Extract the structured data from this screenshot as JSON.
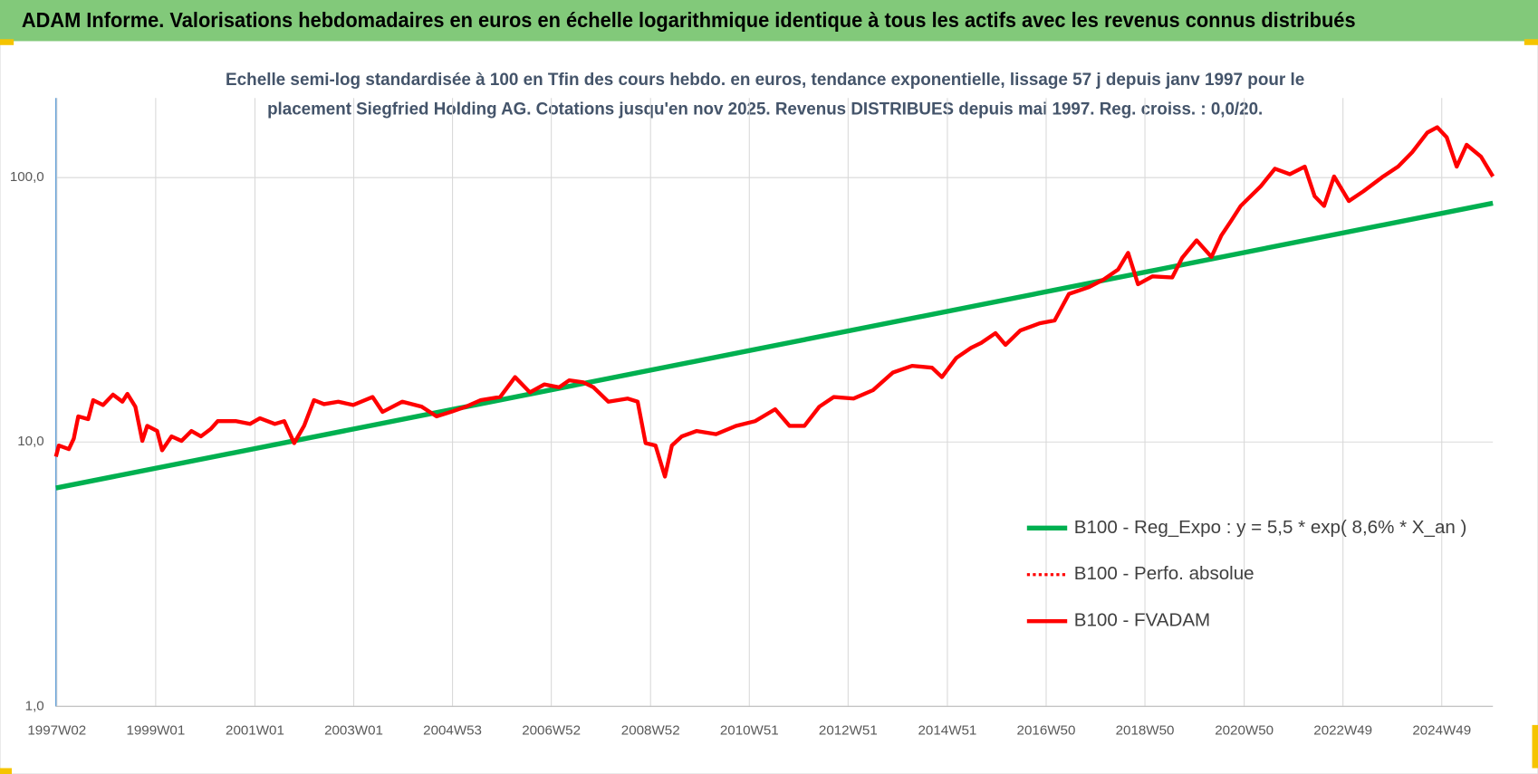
{
  "chart_data": {
    "type": "line",
    "title": "ADAM Informe. Valorisations hebdomadaires en euros en échelle logarithmique identique à tous les actifs avec les revenus connus distribués",
    "subtitle": [
      "Echelle semi-log standardisée à 100 en Tfin des cours hebdo. en euros, tendance exponentielle, lissage 57 j depuis janv 1997 pour le",
      "placement Siegfried Holding AG. Cotations jusqu'en nov 2025. Revenus DISTRIBUES depuis mai 1997. Reg. croiss. : 0,0/20."
    ],
    "log_y": true,
    "grid": true,
    "legend": "right",
    "xlim": [
      1997.0,
      2025.95
    ],
    "ylim": [
      1,
      200
    ],
    "yticks": [
      {
        "value": 1,
        "label": "1,0"
      },
      {
        "value": 10,
        "label": "10,0"
      },
      {
        "value": 100,
        "label": "100,0"
      }
    ],
    "xticks": [
      {
        "value": 1997.02,
        "label": "1997W02"
      },
      {
        "value": 1999.01,
        "label": "1999W01"
      },
      {
        "value": 2001.01,
        "label": "2001W01"
      },
      {
        "value": 2003.0,
        "label": "2003W01"
      },
      {
        "value": 2004.99,
        "label": "2004W53"
      },
      {
        "value": 2006.98,
        "label": "2006W52"
      },
      {
        "value": 2008.98,
        "label": "2008W52"
      },
      {
        "value": 2010.97,
        "label": "2010W51"
      },
      {
        "value": 2012.96,
        "label": "2012W51"
      },
      {
        "value": 2014.96,
        "label": "2014W51"
      },
      {
        "value": 2016.95,
        "label": "2016W50"
      },
      {
        "value": 2018.94,
        "label": "2018W50"
      },
      {
        "value": 2020.94,
        "label": "2020W50"
      },
      {
        "value": 2022.93,
        "label": "2022W49"
      },
      {
        "value": 2024.92,
        "label": "2024W49"
      }
    ],
    "series": [
      {
        "name": "B100 - Reg_Expo : y = 5,5 * exp( 8,6% *  X_an )",
        "color": "#00b050",
        "style": "solid",
        "width": 5,
        "x": [
          1997.0,
          2025.95
        ],
        "values": [
          6.7,
          80
        ]
      },
      {
        "name": "B100 - Perfo. absolue",
        "color": "#ff0000",
        "style": "dotted",
        "width": 3,
        "x": [],
        "values": []
      },
      {
        "name": "B100 - FVADAM",
        "color": "#ff0000",
        "style": "solid",
        "width": 4,
        "x": [
          1997.0,
          1997.06,
          1997.26,
          1997.36,
          1997.45,
          1997.65,
          1997.75,
          1997.95,
          1998.15,
          1998.34,
          1998.44,
          1998.6,
          1998.74,
          1998.84,
          1999.04,
          1999.14,
          1999.33,
          1999.53,
          1999.73,
          1999.92,
          2000.12,
          2000.26,
          2000.62,
          2000.91,
          2001.11,
          2001.41,
          2001.6,
          2001.8,
          2002.0,
          2002.2,
          2002.4,
          2002.69,
          2002.99,
          2003.38,
          2003.58,
          2003.98,
          2004.37,
          2004.67,
          2004.96,
          2005.26,
          2005.56,
          2005.95,
          2006.25,
          2006.55,
          2006.84,
          2007.14,
          2007.34,
          2007.63,
          2007.83,
          2008.13,
          2008.52,
          2008.72,
          2008.88,
          2009.08,
          2009.27,
          2009.41,
          2009.61,
          2009.91,
          2010.3,
          2010.7,
          2011.09,
          2011.49,
          2011.78,
          2012.08,
          2012.38,
          2012.67,
          2013.07,
          2013.46,
          2013.86,
          2014.25,
          2014.65,
          2014.85,
          2015.14,
          2015.44,
          2015.64,
          2015.93,
          2016.13,
          2016.43,
          2016.82,
          2017.12,
          2017.41,
          2017.81,
          2018.11,
          2018.4,
          2018.6,
          2018.8,
          2019.09,
          2019.49,
          2019.69,
          2019.98,
          2020.28,
          2020.48,
          2020.68,
          2020.87,
          2021.27,
          2021.56,
          2021.86,
          2022.16,
          2022.36,
          2022.55,
          2022.75,
          2023.05,
          2023.34,
          2023.74,
          2024.04,
          2024.33,
          2024.63,
          2024.83,
          2025.02,
          2025.22,
          2025.42,
          2025.71,
          2025.95
        ],
        "values": [
          8.8,
          9.7,
          9.4,
          10.3,
          12.5,
          12.2,
          14.4,
          13.8,
          15.1,
          14.2,
          15.2,
          13.6,
          10.1,
          11.5,
          11.0,
          9.3,
          10.5,
          10.1,
          11.0,
          10.5,
          11.2,
          12.0,
          12.0,
          11.7,
          12.3,
          11.7,
          12.0,
          9.9,
          11.5,
          14.4,
          13.9,
          14.2,
          13.8,
          14.8,
          13.0,
          14.2,
          13.6,
          12.5,
          13.0,
          13.6,
          14.4,
          14.8,
          17.6,
          15.4,
          16.5,
          16.1,
          17.1,
          16.8,
          16.1,
          14.2,
          14.6,
          14.2,
          9.9,
          9.7,
          7.4,
          9.7,
          10.5,
          11.0,
          10.7,
          11.5,
          12.0,
          13.3,
          11.5,
          11.5,
          13.6,
          14.8,
          14.6,
          15.7,
          18.3,
          19.4,
          19.1,
          17.6,
          20.8,
          22.7,
          23.7,
          25.8,
          23.3,
          26.4,
          28.1,
          28.8,
          36.3,
          38.5,
          41.2,
          44.9,
          51.9,
          39.5,
          42.3,
          41.9,
          49.7,
          57.9,
          50.1,
          60.4,
          68.7,
          78.1,
          92.6,
          108,
          103,
          110,
          85,
          78.1,
          101,
          81.5,
          88.7,
          101,
          110,
          125,
          148,
          155,
          142,
          110,
          133,
          120,
          101
        ]
      }
    ]
  }
}
